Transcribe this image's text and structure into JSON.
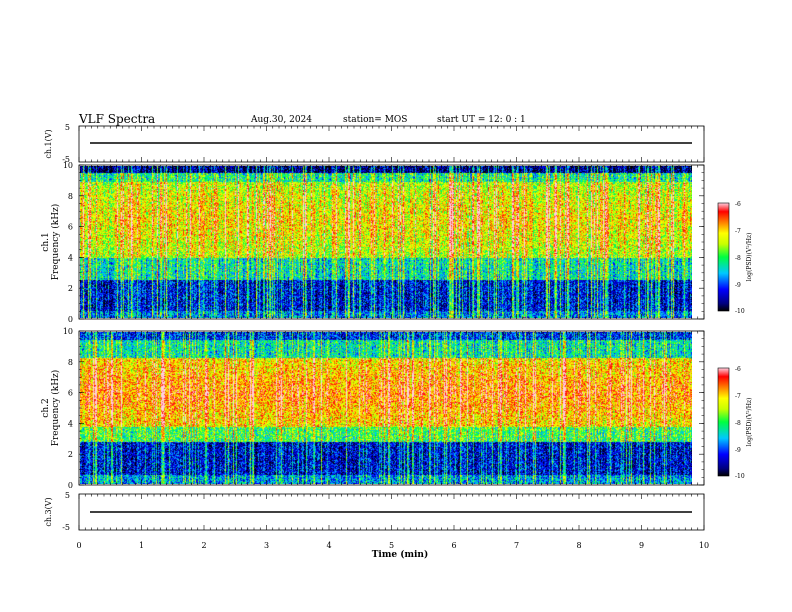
{
  "header": {
    "title": "VLF Spectra",
    "date": "Aug.30, 2024",
    "station": "station= MOS",
    "start": "start  UT =   12: 0  : 1"
  },
  "chart_data": [
    {
      "type": "line",
      "ylabel": "ch.1(V)",
      "ylim": [
        -5,
        5
      ],
      "yticks": [
        "5",
        "-5"
      ],
      "xlim": [
        0,
        10
      ],
      "series": [
        {
          "values_description": "",
          "y": 0
        }
      ]
    },
    {
      "type": "heatmap",
      "ylabel": "ch.1\nFrequency (kHz)",
      "ylim": [
        0,
        10
      ],
      "yticks": [
        "0",
        "2",
        "4",
        "6",
        "8",
        "10"
      ],
      "xlim": [
        0,
        10
      ],
      "data_end_min": 9.85,
      "colorbar": {
        "label": "log(PSD)(V²/Hz)",
        "range": [
          -10,
          -6
        ],
        "ticks": [
          "-6",
          "-7",
          "-8",
          "-9",
          "-10"
        ]
      }
    },
    {
      "type": "heatmap",
      "ylabel": "ch.2\nFrequency (kHz)",
      "ylim": [
        0,
        10
      ],
      "yticks": [
        "0",
        "2",
        "4",
        "6",
        "8",
        "10"
      ],
      "xlim": [
        0,
        10
      ],
      "data_end_min": 9.85,
      "colorbar": {
        "label": "log(PSD)(V²/Hz)",
        "range": [
          -10,
          -6
        ],
        "ticks": [
          "-6",
          "-7",
          "-8",
          "-9",
          "-10"
        ]
      }
    },
    {
      "type": "line",
      "ylabel": "ch.3(V)",
      "ylim": [
        -5,
        5
      ],
      "yticks": [
        "5",
        "-5"
      ],
      "xlim": [
        0,
        10
      ],
      "xlabel": "Time  (min)",
      "xticks": [
        "0",
        "1",
        "2",
        "3",
        "4",
        "5",
        "6",
        "7",
        "8",
        "9",
        "10"
      ],
      "series": [
        {
          "y": 0
        }
      ]
    }
  ]
}
